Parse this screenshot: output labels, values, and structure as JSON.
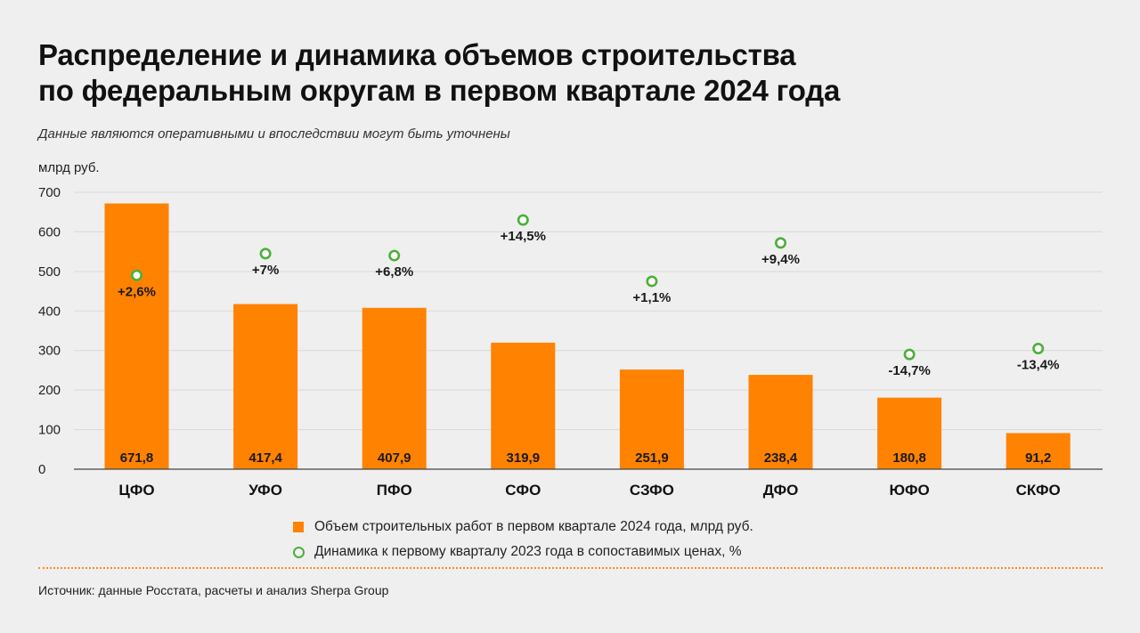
{
  "title_line1": "Распределение и динамика объемов строительства",
  "title_line2": "по федеральным округам в первом квартале 2024 года",
  "subtitle": "Данные являются оперативными и впоследствии могут быть уточнены",
  "source": "Источник: данные Росстата, расчеты и анализ Sherpa Group",
  "colors": {
    "bar": "#ff8200",
    "marker": "#4caf3a",
    "grid": "#d9d9d9",
    "background": "#efefef",
    "divider": "#ff8a1f"
  },
  "chart_data": {
    "type": "bar",
    "ylabel": "млрд руб.",
    "ylim": [
      0,
      700
    ],
    "yticks": [
      0,
      100,
      200,
      300,
      400,
      500,
      600,
      700
    ],
    "grid": true,
    "legend_position": "bottom",
    "categories": [
      "ЦФО",
      "УФО",
      "ПФО",
      "СФО",
      "СЗФО",
      "ДФО",
      "ЮФО",
      "СКФО"
    ],
    "series": [
      {
        "name": "Объем строительных работ в первом квартале 2024 года, млрд руб.",
        "type": "bar",
        "values": [
          671.8,
          417.4,
          407.9,
          319.9,
          251.9,
          238.4,
          180.8,
          91.2
        ],
        "labels": [
          "671,8",
          "417,4",
          "407,9",
          "319,9",
          "251,9",
          "238,4",
          "180,8",
          "91,2"
        ]
      },
      {
        "name": "Динамика к первому кварталу 2023 года в сопоставимых ценах, %",
        "type": "scatter",
        "values": [
          2.6,
          7,
          6.8,
          14.5,
          1.1,
          9.4,
          -14.7,
          -13.4
        ],
        "labels": [
          "+2,6%",
          "+7%",
          "+6,8%",
          "+14,5%",
          "+1,1%",
          "+9,4%",
          "-14,7%",
          "-13,4%"
        ],
        "marker_y_on_axis": [
          490,
          545,
          540,
          630,
          475,
          572,
          290,
          305
        ]
      }
    ]
  }
}
